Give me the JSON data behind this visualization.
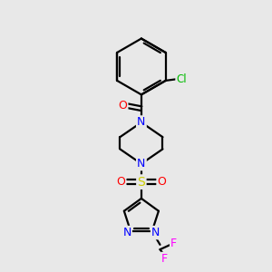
{
  "background_color": "#e8e8e8",
  "bond_color": "black",
  "atom_colors": {
    "N": "#0000ff",
    "O": "#ff0000",
    "S": "#cccc00",
    "Cl": "#00bb00",
    "F": "#ff00ff",
    "C": "black"
  },
  "figsize": [
    3.0,
    3.0
  ],
  "dpi": 100,
  "xlim": [
    0,
    10
  ],
  "ylim": [
    0,
    10
  ]
}
